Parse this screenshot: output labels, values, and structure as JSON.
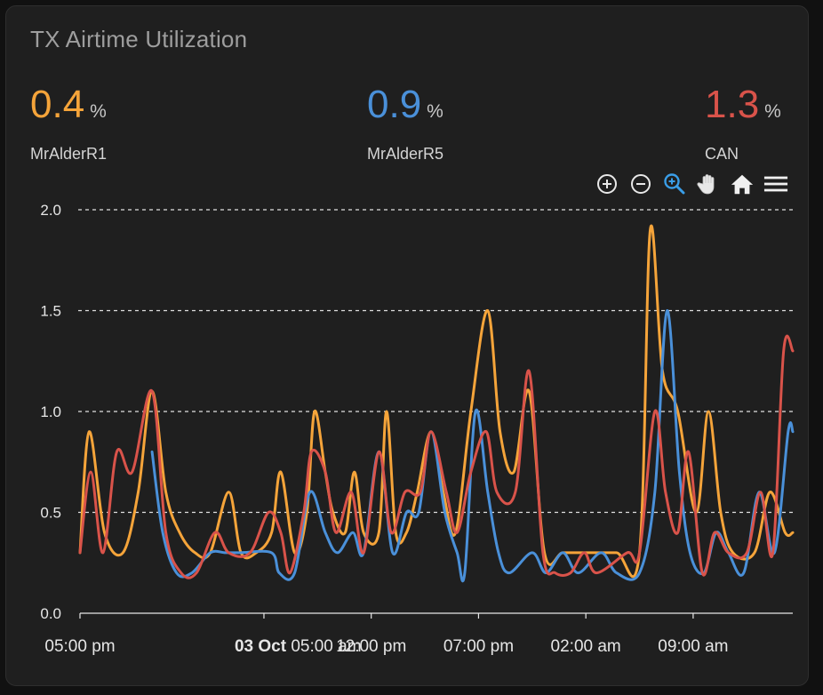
{
  "card": {
    "title": "TX Airtime Utilization"
  },
  "stats": [
    {
      "value": "0.4",
      "unit": "%",
      "name": "MrAlderR1",
      "color": "#f5a43a"
    },
    {
      "value": "0.9",
      "unit": "%",
      "name": "MrAlderR5",
      "color": "#4a90d9"
    },
    {
      "value": "1.3",
      "unit": "%",
      "name": "CAN",
      "color": "#d9534a"
    }
  ],
  "toolbar": {
    "icons": [
      "zoom-in-icon",
      "zoom-out-icon",
      "selection-zoom-icon",
      "pan-hand-icon",
      "reset-home-icon",
      "menu-icon"
    ]
  },
  "chart_data": {
    "type": "line",
    "x_tick_labels": [
      {
        "bold": "",
        "text": "05:00 pm"
      },
      {
        "bold": "03 Oct",
        "text": " 05:00 am"
      },
      {
        "bold": "",
        "text": "12:00 pm"
      },
      {
        "bold": "",
        "text": "07:00 pm"
      },
      {
        "bold": "",
        "text": "02:00 am"
      },
      {
        "bold": "",
        "text": "09:00 am"
      }
    ],
    "x_tick_hours": [
      0,
      12,
      19,
      26,
      33,
      40
    ],
    "xlim": [
      0,
      46.5
    ],
    "y_tick_labels": [
      "0.0",
      "0.5",
      "1.0",
      "1.5",
      "2.0"
    ],
    "ylim": [
      0,
      2.0
    ],
    "grid": true,
    "series": [
      {
        "name": "MrAlderR1",
        "color": "#f5a43a",
        "points": [
          [
            0,
            0.3
          ],
          [
            0.6,
            0.9
          ],
          [
            1.6,
            0.4
          ],
          [
            2.8,
            0.3
          ],
          [
            3.8,
            0.6
          ],
          [
            4.7,
            1.1
          ],
          [
            5.6,
            0.6
          ],
          [
            6.5,
            0.4
          ],
          [
            7.5,
            0.3
          ],
          [
            8.5,
            0.3
          ],
          [
            9.7,
            0.6
          ],
          [
            10.5,
            0.3
          ],
          [
            11.5,
            0.3
          ],
          [
            12.5,
            0.4
          ],
          [
            13.1,
            0.7
          ],
          [
            14,
            0.3
          ],
          [
            14.8,
            0.5
          ],
          [
            15.3,
            1.0
          ],
          [
            16,
            0.7
          ],
          [
            16.5,
            0.5
          ],
          [
            17.3,
            0.4
          ],
          [
            17.9,
            0.7
          ],
          [
            18.5,
            0.4
          ],
          [
            19.5,
            0.4
          ],
          [
            20,
            1.0
          ],
          [
            20.6,
            0.4
          ],
          [
            21.3,
            0.4
          ],
          [
            22,
            0.6
          ],
          [
            22.9,
            0.9
          ],
          [
            23.7,
            0.6
          ],
          [
            24.5,
            0.4
          ],
          [
            25.5,
            1.0
          ],
          [
            26.6,
            1.5
          ],
          [
            27.4,
            0.9
          ],
          [
            28.3,
            0.7
          ],
          [
            29.3,
            1.1
          ],
          [
            30.3,
            0.3
          ],
          [
            31.5,
            0.3
          ],
          [
            33,
            0.3
          ],
          [
            35,
            0.3
          ],
          [
            36.5,
            0.3
          ],
          [
            37.2,
            1.9
          ],
          [
            38,
            1.2
          ],
          [
            39,
            1.0
          ],
          [
            40.2,
            0.5
          ],
          [
            41,
            1.0
          ],
          [
            41.8,
            0.5
          ],
          [
            42.6,
            0.3
          ],
          [
            44,
            0.3
          ],
          [
            45,
            0.6
          ],
          [
            46,
            0.4
          ],
          [
            46.5,
            0.4
          ]
        ]
      },
      {
        "name": "MrAlderR5",
        "color": "#4a90d9",
        "points": [
          [
            4.7,
            0.8
          ],
          [
            5.4,
            0.4
          ],
          [
            6.3,
            0.2
          ],
          [
            7.3,
            0.2
          ],
          [
            8.5,
            0.3
          ],
          [
            9.5,
            0.3
          ],
          [
            10.5,
            0.3
          ],
          [
            12.5,
            0.3
          ],
          [
            13,
            0.2
          ],
          [
            14,
            0.2
          ],
          [
            15.0,
            0.6
          ],
          [
            16,
            0.4
          ],
          [
            16.8,
            0.3
          ],
          [
            17.8,
            0.4
          ],
          [
            18.5,
            0.3
          ],
          [
            19.5,
            0.8
          ],
          [
            20.4,
            0.3
          ],
          [
            21.3,
            0.5
          ],
          [
            22.1,
            0.5
          ],
          [
            22.9,
            0.9
          ],
          [
            23.8,
            0.5
          ],
          [
            24.6,
            0.3
          ],
          [
            25.1,
            0.2
          ],
          [
            25.8,
            1.0
          ],
          [
            26.6,
            0.6
          ],
          [
            27.3,
            0.3
          ],
          [
            28,
            0.2
          ],
          [
            29.5,
            0.3
          ],
          [
            30.4,
            0.2
          ],
          [
            31.5,
            0.3
          ],
          [
            32.5,
            0.2
          ],
          [
            34,
            0.3
          ],
          [
            35,
            0.2
          ],
          [
            36.5,
            0.2
          ],
          [
            37.5,
            0.6
          ],
          [
            38.3,
            1.5
          ],
          [
            39.1,
            0.7
          ],
          [
            39.8,
            0.3
          ],
          [
            40.7,
            0.2
          ],
          [
            41.5,
            0.4
          ],
          [
            42.3,
            0.3
          ],
          [
            43.3,
            0.2
          ],
          [
            44.3,
            0.6
          ],
          [
            45.3,
            0.3
          ],
          [
            46.2,
            0.9
          ],
          [
            46.5,
            0.9
          ]
        ]
      },
      {
        "name": "CAN",
        "color": "#d9534a",
        "points": [
          [
            0,
            0.3
          ],
          [
            0.7,
            0.7
          ],
          [
            1.5,
            0.3
          ],
          [
            2.4,
            0.8
          ],
          [
            3.4,
            0.7
          ],
          [
            4.7,
            1.1
          ],
          [
            5.6,
            0.4
          ],
          [
            6.6,
            0.2
          ],
          [
            7.6,
            0.2
          ],
          [
            8.8,
            0.4
          ],
          [
            9.7,
            0.3
          ],
          [
            11.1,
            0.3
          ],
          [
            12.3,
            0.5
          ],
          [
            13.1,
            0.4
          ],
          [
            13.7,
            0.2
          ],
          [
            14.6,
            0.5
          ],
          [
            15.1,
            0.8
          ],
          [
            16,
            0.7
          ],
          [
            16.7,
            0.4
          ],
          [
            17.7,
            0.6
          ],
          [
            18.5,
            0.3
          ],
          [
            19.5,
            0.8
          ],
          [
            20.3,
            0.4
          ],
          [
            21.2,
            0.6
          ],
          [
            22.2,
            0.6
          ],
          [
            22.9,
            0.9
          ],
          [
            23.9,
            0.6
          ],
          [
            24.6,
            0.4
          ],
          [
            25.5,
            0.7
          ],
          [
            26.5,
            0.9
          ],
          [
            27.2,
            0.6
          ],
          [
            28.4,
            0.6
          ],
          [
            29.3,
            1.2
          ],
          [
            30.2,
            0.3
          ],
          [
            31,
            0.2
          ],
          [
            32,
            0.2
          ],
          [
            32.9,
            0.3
          ],
          [
            33.7,
            0.2
          ],
          [
            35.7,
            0.3
          ],
          [
            36.5,
            0.3
          ],
          [
            37.5,
            1.0
          ],
          [
            38.2,
            0.6
          ],
          [
            39,
            0.4
          ],
          [
            39.7,
            0.8
          ],
          [
            40.6,
            0.2
          ],
          [
            41.4,
            0.4
          ],
          [
            42.3,
            0.3
          ],
          [
            43.5,
            0.3
          ],
          [
            44.4,
            0.6
          ],
          [
            45.2,
            0.3
          ],
          [
            45.9,
            1.3
          ],
          [
            46.5,
            1.3
          ]
        ]
      }
    ]
  }
}
